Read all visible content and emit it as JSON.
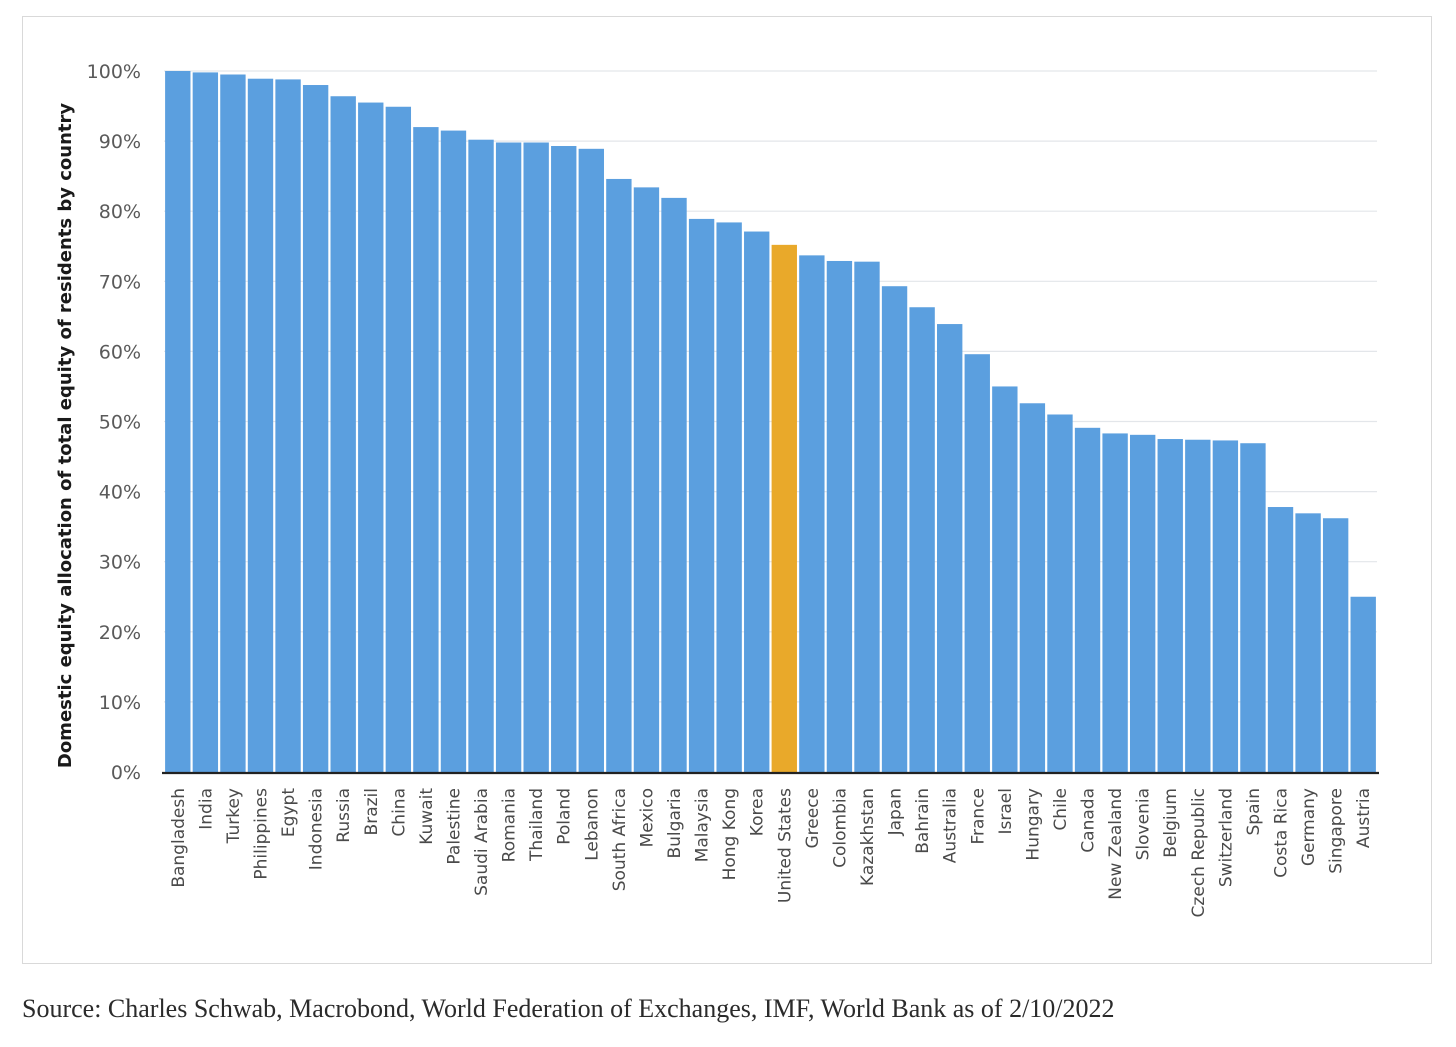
{
  "source": "Source: Charles Schwab, Macrobond, World Federation of Exchanges, IMF, World Bank as of 2/10/2022",
  "colors": {
    "bar": "#5b9fdf",
    "highlight": "#e9a92a",
    "grid": "#e3e6ea",
    "axis": "#222222"
  },
  "chart_data": {
    "type": "bar",
    "title": "",
    "xlabel": "",
    "ylabel": "Domestic equity allocation of total equity of residents by country",
    "ylim": [
      0,
      100
    ],
    "yticks": [
      0,
      10,
      20,
      30,
      40,
      50,
      60,
      70,
      80,
      90,
      100
    ],
    "ytick_labels": [
      "0%",
      "10%",
      "20%",
      "30%",
      "40%",
      "50%",
      "60%",
      "70%",
      "80%",
      "90%",
      "100%"
    ],
    "grid": true,
    "legend": "none",
    "highlighted_category": "United States",
    "categories": [
      "Bangladesh",
      "India",
      "Turkey",
      "Philippines",
      "Egypt",
      "Indonesia",
      "Russia",
      "Brazil",
      "China",
      "Kuwait",
      "Palestine",
      "Saudi Arabia",
      "Romania",
      "Thailand",
      "Poland",
      "Lebanon",
      "South Africa",
      "Mexico",
      "Bulgaria",
      "Malaysia",
      "Hong Kong",
      "Korea",
      "United States",
      "Greece",
      "Colombia",
      "Kazakhstan",
      "Japan",
      "Bahrain",
      "Australia",
      "France",
      "Israel",
      "Hungary",
      "Chile",
      "Canada",
      "New Zealand",
      "Slovenia",
      "Belgium",
      "Czech Republic",
      "Switzerland",
      "Spain",
      "Costa Rica",
      "Germany",
      "Singapore",
      "Austria"
    ],
    "values": [
      100,
      99.8,
      99.5,
      98.9,
      98.8,
      98.0,
      96.4,
      95.5,
      94.9,
      92.0,
      91.5,
      90.2,
      89.8,
      89.8,
      89.3,
      88.9,
      84.6,
      83.4,
      81.9,
      78.9,
      78.4,
      77.1,
      75.2,
      73.7,
      72.9,
      72.8,
      69.3,
      66.3,
      63.9,
      59.6,
      55.0,
      52.6,
      51.0,
      49.1,
      48.3,
      48.1,
      47.5,
      47.4,
      47.3,
      46.9,
      37.8,
      36.9,
      36.2,
      25.0
    ]
  }
}
